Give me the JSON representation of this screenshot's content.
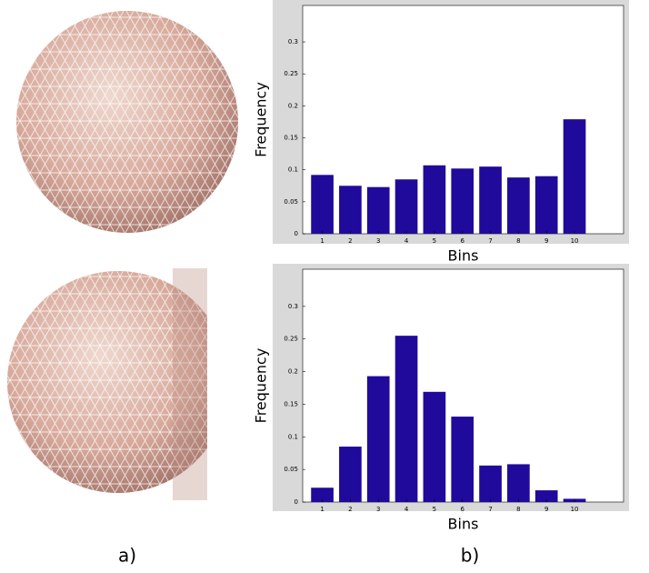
{
  "chart_data": [
    {
      "type": "bar",
      "x": [
        1,
        2,
        3,
        4,
        5,
        6,
        7,
        8,
        9,
        10
      ],
      "values": [
        0.092,
        0.075,
        0.073,
        0.085,
        0.107,
        0.102,
        0.105,
        0.088,
        0.09,
        0.179
      ],
      "color": "#1f0a9c",
      "xlabel": "Bins",
      "ylabel": "Frequency",
      "xlim": [
        0.3,
        11.75
      ],
      "xticks": [
        1,
        2,
        3,
        4,
        5,
        6,
        7,
        8,
        9,
        10
      ],
      "ylim": [
        0,
        0.357
      ],
      "yticks": [
        0,
        0.05,
        0.1,
        0.15,
        0.2,
        0.25,
        0.3
      ]
    },
    {
      "type": "bar",
      "x": [
        1,
        2,
        3,
        4,
        5,
        6,
        7,
        8,
        9,
        10
      ],
      "values": [
        0.022,
        0.085,
        0.193,
        0.255,
        0.169,
        0.131,
        0.056,
        0.058,
        0.018,
        0.005
      ],
      "color": "#1f0a9c",
      "xlabel": "Bins",
      "ylabel": "Frequency",
      "xlim": [
        0.3,
        11.75
      ],
      "xticks": [
        1,
        2,
        3,
        4,
        5,
        6,
        7,
        8,
        9,
        10
      ],
      "ylim": [
        0,
        0.357
      ],
      "yticks": [
        0,
        0.05,
        0.1,
        0.15,
        0.2,
        0.25,
        0.3
      ]
    }
  ],
  "captions": [
    "a)",
    "b)"
  ]
}
